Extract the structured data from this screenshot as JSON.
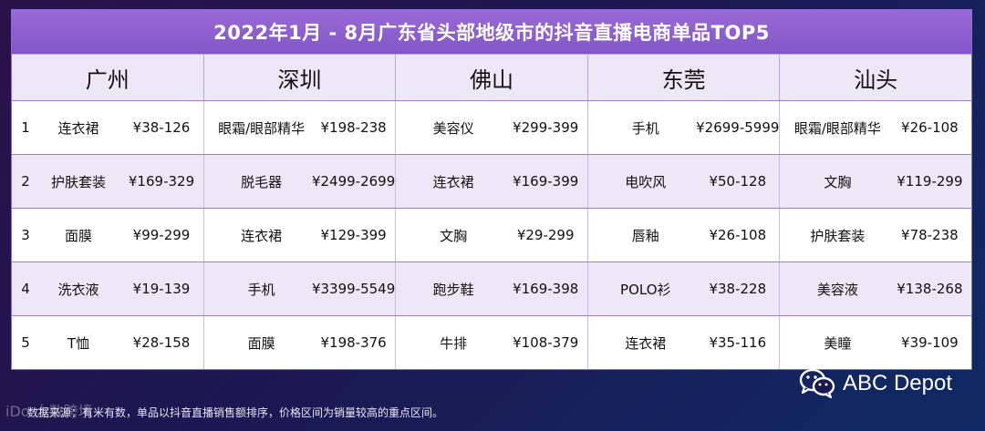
{
  "title": "2022年1月 - 8月广东省头部地级市的抖音直播电商单品TOP5",
  "cities": [
    "广州",
    "深圳",
    "佛山",
    "东莞",
    "汕头"
  ],
  "rows": [
    {
      "rank": "1",
      "cells": [
        {
          "product": "连衣裙",
          "price": "¥38-126"
        },
        {
          "product": "眼霜/眼部精华",
          "price": "¥198-238"
        },
        {
          "product": "美容仪",
          "price": "¥299-399"
        },
        {
          "product": "手机",
          "price": "¥2699-5999"
        },
        {
          "product": "眼霜/眼部精华",
          "price": "¥26-108"
        }
      ]
    },
    {
      "rank": "2",
      "cells": [
        {
          "product": "护肤套装",
          "price": "¥169-329"
        },
        {
          "product": "脱毛器",
          "price": "¥2499-2699"
        },
        {
          "product": "连衣裙",
          "price": "¥169-399"
        },
        {
          "product": "电吹风",
          "price": "¥50-128"
        },
        {
          "product": "文胸",
          "price": "¥119-299"
        }
      ]
    },
    {
      "rank": "3",
      "cells": [
        {
          "product": "面膜",
          "price": "¥99-299"
        },
        {
          "product": "连衣裙",
          "price": "¥129-399"
        },
        {
          "product": "文胸",
          "price": "¥29-299"
        },
        {
          "product": "唇釉",
          "price": "¥26-108"
        },
        {
          "product": "护肤套装",
          "price": "¥78-238"
        }
      ]
    },
    {
      "rank": "4",
      "cells": [
        {
          "product": "洗衣液",
          "price": "¥19-139"
        },
        {
          "product": "手机",
          "price": "¥3399-5549"
        },
        {
          "product": "跑步鞋",
          "price": "¥169-398"
        },
        {
          "product": "POLO衫",
          "price": "¥38-228"
        },
        {
          "product": "美容液",
          "price": "¥138-268"
        }
      ]
    },
    {
      "rank": "5",
      "cells": [
        {
          "product": "T恤",
          "price": "¥28-158"
        },
        {
          "product": "面膜",
          "price": "¥198-376"
        },
        {
          "product": "牛排",
          "price": "¥108-379"
        },
        {
          "product": "连衣裙",
          "price": "¥35-116"
        },
        {
          "product": "美瞳",
          "price": "¥39-109"
        }
      ]
    }
  ],
  "footer_note": "数据来源：有米有数，单品以抖音直播销售额排序，价格区间为销量较高的重点区间。",
  "watermark": "iDo 大数跨境",
  "logo": {
    "text": "ABC Depot",
    "icon": "wechat-icon"
  },
  "colors": {
    "title_bar": "#8a5cd0",
    "header_bg": "#ece8f6",
    "border": "#9a7fdc"
  }
}
